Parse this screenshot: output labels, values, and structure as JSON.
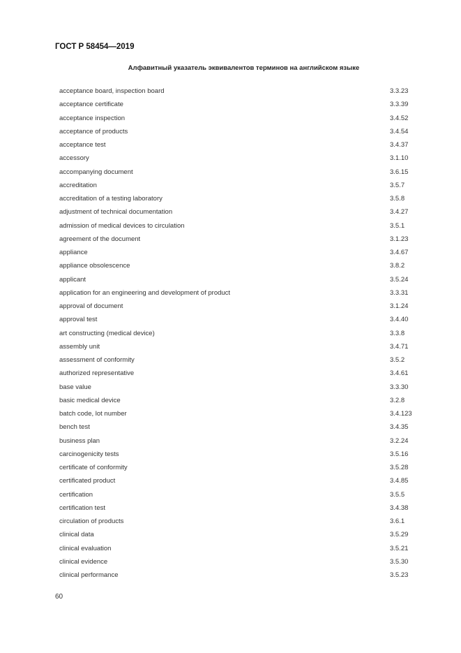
{
  "header": {
    "standard": "ГОСТ Р 58454—2019"
  },
  "title": "Алфавитный указатель эквивалентов терминов на английском языке",
  "entries": [
    {
      "term": "acceptance board, inspection board",
      "ref": "3.3.23"
    },
    {
      "term": "acceptance certificate",
      "ref": "3.3.39"
    },
    {
      "term": "acceptance inspection",
      "ref": "3.4.52"
    },
    {
      "term": "acceptance of products",
      "ref": "3.4.54"
    },
    {
      "term": "acceptance test",
      "ref": "3.4.37"
    },
    {
      "term": "accessory",
      "ref": "3.1.10"
    },
    {
      "term": "accompanying document",
      "ref": "3.6.15"
    },
    {
      "term": "accreditation",
      "ref": "3.5.7"
    },
    {
      "term": "accreditation of a testing laboratory",
      "ref": "3.5.8"
    },
    {
      "term": "adjustment of technical documentation",
      "ref": "3.4.27"
    },
    {
      "term": "admission of medical devices to circulation",
      "ref": "3.5.1"
    },
    {
      "term": "agreement of the document",
      "ref": "3.1.23"
    },
    {
      "term": "appliance",
      "ref": "3.4.67"
    },
    {
      "term": "appliance obsolescence",
      "ref": "3.8.2"
    },
    {
      "term": "applicant",
      "ref": "3.5.24"
    },
    {
      "term": "application for an engineering and development of product",
      "ref": "3.3.31"
    },
    {
      "term": "approval of document",
      "ref": "3.1.24"
    },
    {
      "term": "approval test",
      "ref": "3.4.40"
    },
    {
      "term": "art constructing (medical device)",
      "ref": "3.3.8"
    },
    {
      "term": "assembly unit",
      "ref": "3.4.71"
    },
    {
      "term": "assessment of conformity",
      "ref": "3.5.2"
    },
    {
      "term": "authorized representative",
      "ref": "3.4.61"
    },
    {
      "term": "base value",
      "ref": "3.3.30"
    },
    {
      "term": "basic medical device",
      "ref": "3.2.8"
    },
    {
      "term": "batch code, lot number",
      "ref": "3.4.123"
    },
    {
      "term": "bench test",
      "ref": "3.4.35"
    },
    {
      "term": "business plan",
      "ref": "3.2.24"
    },
    {
      "term": "carcinogenicity tests",
      "ref": "3.5.16"
    },
    {
      "term": "certificate of conformity",
      "ref": "3.5.28"
    },
    {
      "term": "certificated product",
      "ref": "3.4.85"
    },
    {
      "term": "certification",
      "ref": "3.5.5"
    },
    {
      "term": "certification test",
      "ref": "3.4.38"
    },
    {
      "term": "circulation of products",
      "ref": "3.6.1"
    },
    {
      "term": "clinical data",
      "ref": "3.5.29"
    },
    {
      "term": "clinical evaluation",
      "ref": "3.5.21"
    },
    {
      "term": "clinical evidence",
      "ref": "3.5.30"
    },
    {
      "term": "clinical performance",
      "ref": "3.5.23"
    }
  ],
  "page_number": "60"
}
